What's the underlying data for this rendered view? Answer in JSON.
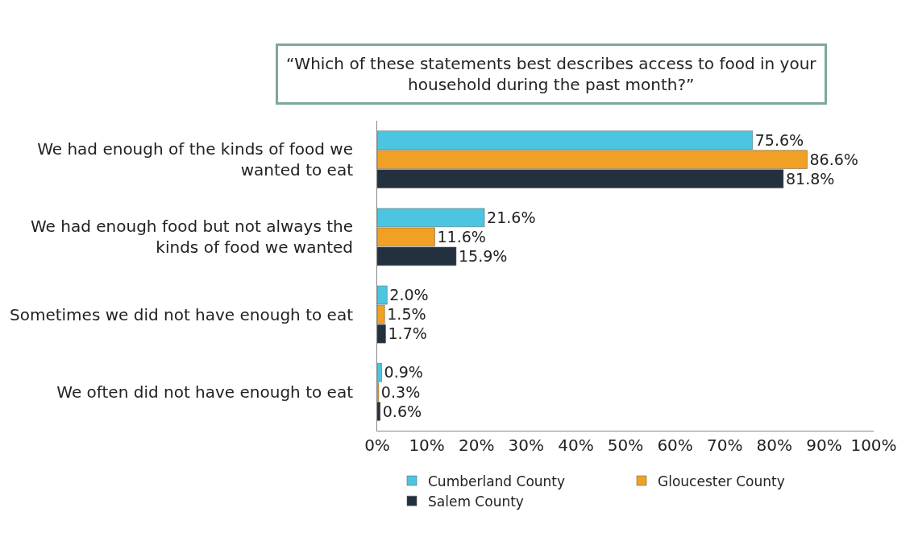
{
  "chart_data": {
    "type": "bar",
    "orientation": "horizontal",
    "title": "“Which of these statements best describes access to food in your household during the past month?”",
    "categories": [
      "We had enough of the kinds of food we wanted to eat",
      "We had enough food but not always the kinds of food we wanted",
      "Sometimes we did not have enough to eat",
      "We often did not have enough to eat"
    ],
    "series": [
      {
        "name": "Cumberland County",
        "color": "#4cc6e0",
        "values": [
          75.6,
          21.6,
          2.0,
          0.9
        ],
        "value_labels": [
          "75.6%",
          "21.6%",
          "2.0%",
          "0.9%"
        ]
      },
      {
        "name": "Gloucester County",
        "color": "#f0a024",
        "values": [
          86.6,
          11.6,
          1.5,
          0.3
        ],
        "value_labels": [
          "86.6%",
          "11.6%",
          "1.5%",
          "0.3%"
        ]
      },
      {
        "name": "Salem County",
        "color": "#22303f",
        "values": [
          81.8,
          15.9,
          1.7,
          0.6
        ],
        "value_labels": [
          "81.8%",
          "15.9%",
          "1.7%",
          "0.6%"
        ]
      }
    ],
    "xlim": [
      0,
      100
    ],
    "xticks": [
      {
        "value": 0,
        "label": "0%"
      },
      {
        "value": 10,
        "label": "10%"
      },
      {
        "value": 20,
        "label": "20%"
      },
      {
        "value": 30,
        "label": "30%"
      },
      {
        "value": 40,
        "label": "40%"
      },
      {
        "value": 50,
        "label": "50%"
      },
      {
        "value": 60,
        "label": "60%"
      },
      {
        "value": 70,
        "label": "70%"
      },
      {
        "value": 80,
        "label": "80%"
      },
      {
        "value": 90,
        "label": "90%"
      },
      {
        "value": 100,
        "label": "100%"
      }
    ],
    "legend": "bottom"
  }
}
